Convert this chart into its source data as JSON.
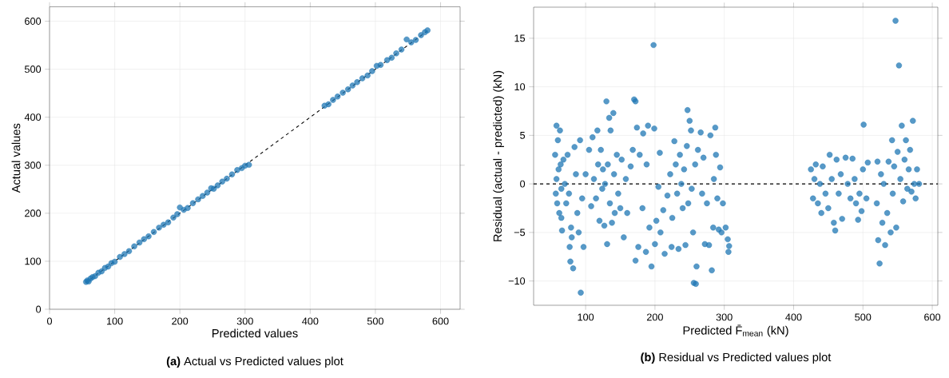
{
  "chart_data": [
    {
      "type": "scatter",
      "title": "**(a)** Actual vs Predicted values plot",
      "xlabel": "Predicted values",
      "ylabel": "Actual values",
      "xlim": [
        0,
        630
      ],
      "ylim": [
        0,
        630
      ],
      "xticks": [
        0,
        100,
        200,
        300,
        400,
        500,
        600
      ],
      "yticks": [
        0,
        100,
        200,
        300,
        400,
        500,
        600
      ],
      "grid": true,
      "series": [
        {
          "type": "scatter",
          "marker": "circle",
          "color": "#1f77b4",
          "x": [
            56,
            58,
            60,
            63,
            66,
            70,
            75,
            80,
            85,
            90,
            95,
            100,
            108,
            115,
            122,
            130,
            138,
            145,
            152,
            160,
            168,
            175,
            182,
            190,
            196,
            200,
            206,
            212,
            220,
            228,
            235,
            242,
            248,
            252,
            258,
            265,
            272,
            280,
            288,
            295,
            300,
            306,
            422,
            428,
            435,
            442,
            450,
            458,
            465,
            472,
            480,
            488,
            495,
            502,
            508,
            518,
            525,
            532,
            540,
            548,
            555,
            562,
            570,
            576,
            580
          ],
          "values": [
            57,
            60,
            58,
            64,
            67,
            69,
            76,
            79,
            86,
            89,
            96,
            99,
            109,
            115,
            121,
            131,
            139,
            146,
            152,
            161,
            170,
            176,
            181,
            191,
            198,
            212,
            207,
            211,
            221,
            229,
            236,
            243,
            252,
            251,
            258,
            266,
            272,
            281,
            290,
            294,
            299,
            301,
            424,
            427,
            436,
            443,
            451,
            458,
            466,
            473,
            481,
            487,
            496,
            507,
            509,
            519,
            524,
            533,
            541,
            562,
            556,
            561,
            571,
            577,
            581
          ]
        },
        {
          "type": "line",
          "color": "#000000",
          "line_style": "dashed",
          "marker": "none",
          "x": [
            55,
            580
          ],
          "values": [
            55,
            580
          ]
        }
      ]
    },
    {
      "type": "scatter",
      "title": "**(b)** Residual vs Predicted values plot",
      "xlabel": "Predicted F̄$_{mean}$ (kN)",
      "ylabel": "Residual (actual - predicted) (kN)",
      "xlim": [
        25,
        608
      ],
      "ylim": [
        -12.5,
        18.2
      ],
      "xticks": [
        100,
        200,
        300,
        400,
        500,
        600
      ],
      "yticks": [
        {
          "value": -10,
          "label": "−10"
        },
        {
          "value": -5,
          "label": "−5"
        },
        0,
        5,
        10,
        15
      ],
      "grid": true,
      "ref_lines": [
        {
          "axis": "y",
          "value": 0,
          "color": "#000000",
          "line_style": "dashed"
        }
      ],
      "series": [
        {
          "type": "scatter",
          "marker": "circle",
          "color": "#1f77b4",
          "x": [
            56,
            57,
            58,
            58,
            59,
            60,
            61,
            62,
            63,
            64,
            65,
            65,
            66,
            68,
            70,
            72,
            74,
            76,
            77,
            78,
            79,
            80,
            82,
            84,
            86,
            88,
            90,
            92,
            93,
            95,
            97,
            100,
            105,
            108,
            110,
            112,
            115,
            117,
            118,
            120,
            122,
            124,
            125,
            127,
            128,
            130,
            131,
            132,
            134,
            135,
            136,
            138,
            140,
            141,
            142,
            145,
            147,
            150,
            152,
            155,
            158,
            160,
            165,
            168,
            170,
            172,
            172,
            174,
            176,
            178,
            182,
            183,
            187,
            188,
            190,
            192,
            195,
            198,
            199,
            200,
            202,
            205,
            207,
            208,
            212,
            214,
            218,
            222,
            224,
            225,
            228,
            230,
            232,
            234,
            236,
            238,
            240,
            242,
            244,
            246,
            247,
            248,
            250,
            252,
            253,
            255,
            256,
            258,
            259,
            260,
            262,
            266,
            268,
            270,
            272,
            275,
            278,
            280,
            282,
            284,
            285,
            287,
            288,
            290,
            292,
            294,
            296,
            298,
            302,
            305,
            306,
            307,
            425,
            428,
            430,
            432,
            435,
            438,
            440,
            442,
            446,
            450,
            452,
            455,
            458,
            460,
            462,
            465,
            468,
            470,
            475,
            478,
            482,
            485,
            488,
            490,
            493,
            495,
            498,
            500,
            501,
            505,
            507,
            520,
            521,
            522,
            524,
            526,
            528,
            530,
            532,
            535,
            537,
            540,
            542,
            543,
            545,
            547,
            548,
            550,
            552,
            554,
            556,
            558,
            560,
            562,
            564,
            566,
            568,
            570,
            572,
            574,
            576,
            578,
            581
          ],
          "values": [
            3,
            -1,
            6,
            0.5,
            -2,
            4.5,
            1.5,
            -3,
            5.5,
            2,
            -0.5,
            -3.5,
            -4.8,
            2.5,
            0,
            -2,
            3,
            -1,
            -6.5,
            -8,
            -4.5,
            -5.5,
            -8.7,
            3.8,
            1,
            -3,
            -5,
            4.5,
            -11.2,
            -1.5,
            -6.5,
            1,
            3.5,
            -2.3,
            4.8,
            0.5,
            -1.5,
            5.5,
            2,
            -3.8,
            3.5,
            -0.5,
            1.5,
            -4.3,
            0,
            8.5,
            -6.2,
            2,
            6.8,
            -2,
            5.5,
            -4,
            7.3,
            1,
            -3,
            3,
            -1,
            -2.5,
            2.5,
            -5.5,
            0.5,
            -3,
            1.8,
            3.5,
            8.7,
            8.5,
            -7.9,
            5.8,
            -6.5,
            3,
            -2.5,
            5.2,
            -7,
            2,
            6,
            -4.5,
            -8.5,
            14.3,
            5.7,
            -6.2,
            -3.8,
            -0.3,
            3.2,
            -5,
            -2.7,
            -7.2,
            -1.2,
            1,
            -6.5,
            -3.5,
            4.4,
            2,
            -1,
            -6.7,
            3,
            0,
            -2.5,
            1.5,
            -6.3,
            3.9,
            7.6,
            -2,
            6.5,
            5.5,
            -0.5,
            -5,
            -10.2,
            2,
            -10.3,
            -8.5,
            3.5,
            5.3,
            -1,
            2.7,
            -6.2,
            -2,
            -6.3,
            5,
            -8.9,
            -4.5,
            0.5,
            5.8,
            3,
            -1.5,
            -4.7,
            1.7,
            -5,
            -2,
            -4.5,
            -5.7,
            -7,
            -6.4,
            1.5,
            -1.5,
            0.5,
            2,
            -2,
            0,
            -3,
            1.8,
            -1,
            -2.5,
            3,
            0.5,
            -4,
            -4.8,
            2.5,
            -1,
            1,
            -3.6,
            2.7,
            0,
            -1.5,
            2.6,
            0.5,
            -2,
            -3.7,
            -1,
            -2.8,
            1.5,
            6.1,
            -1.5,
            2.2,
            -2,
            2.3,
            -5.8,
            -8.2,
            1,
            -4,
            0,
            -6.3,
            -3,
            2.3,
            -5,
            4.5,
            -1,
            1.8,
            16.8,
            -4.5,
            3.3,
            12.2,
            0.5,
            6,
            -1.8,
            2.5,
            4.5,
            -0.5,
            1.5,
            3.5,
            -0.8,
            6.5,
            0,
            -1.5,
            1.5,
            0
          ]
        }
      ]
    }
  ]
}
